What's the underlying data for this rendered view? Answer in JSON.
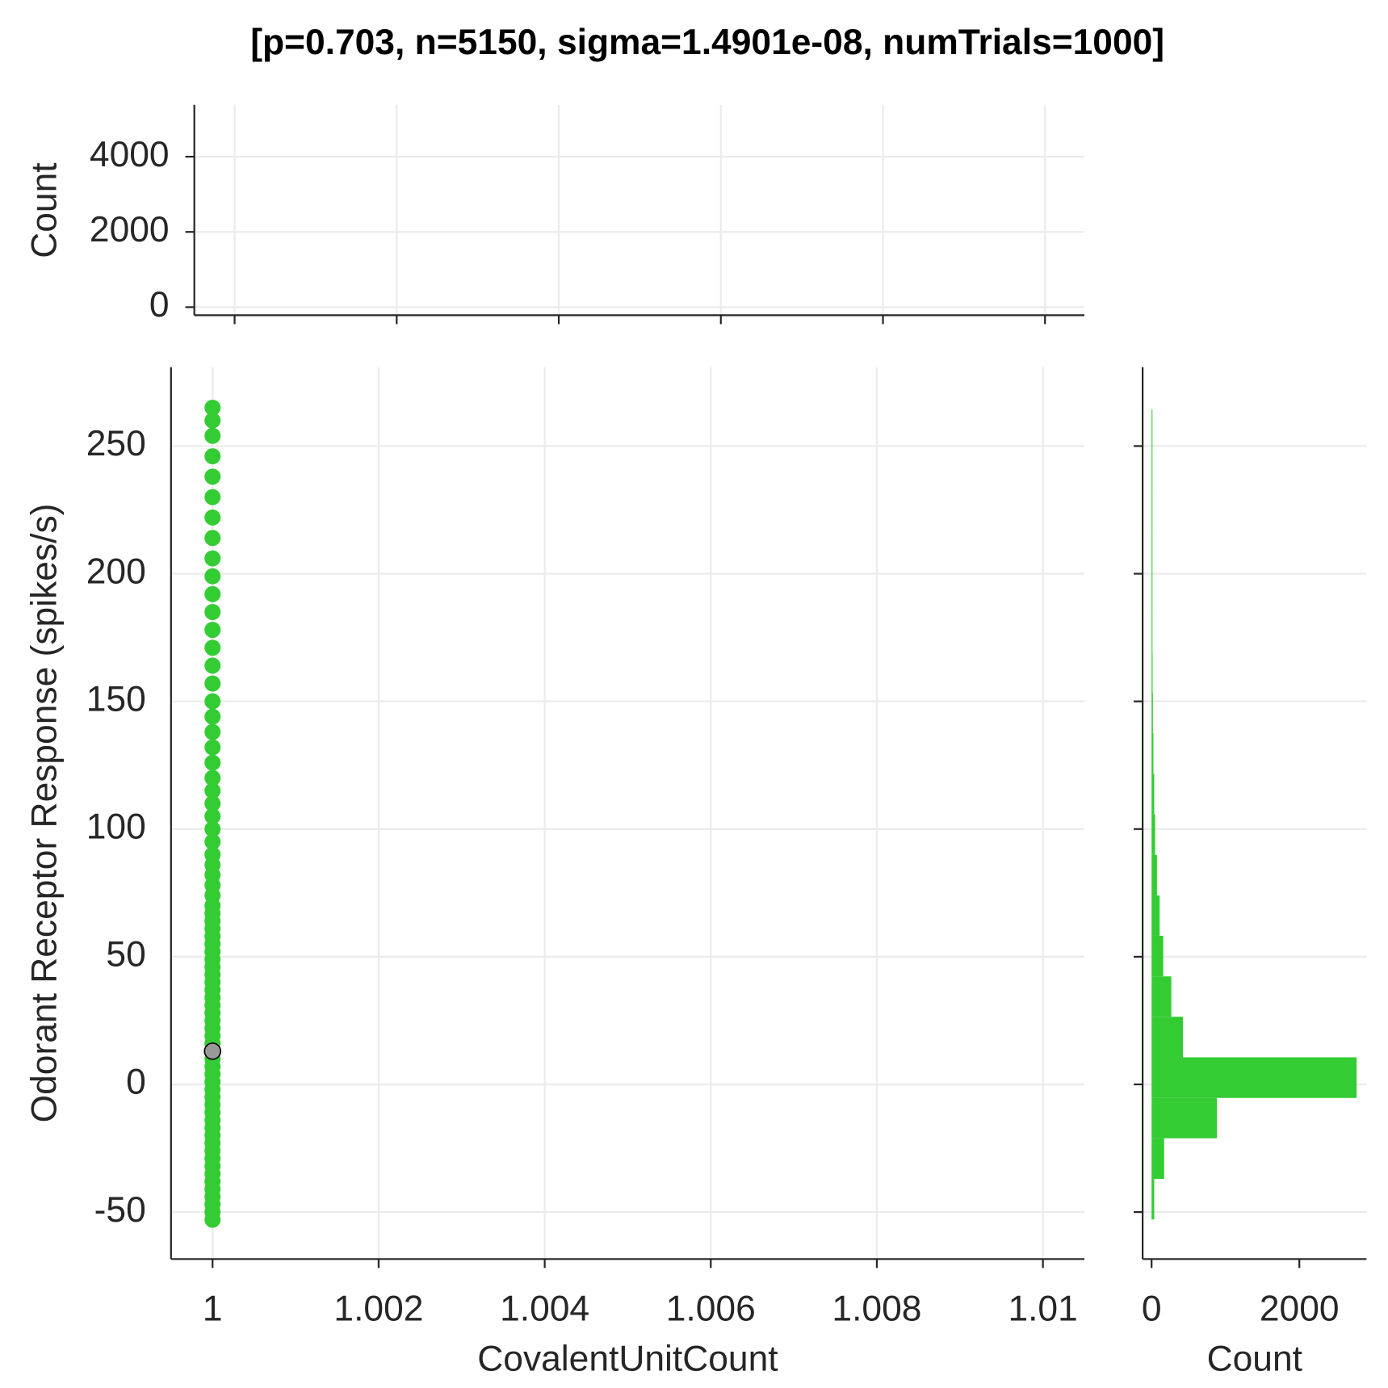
{
  "chart_data": [
    {
      "type": "histogram",
      "title": "[p=0.703, n=5150, sigma=1.4901e-08, numTrials=1000]",
      "y_label": "Count",
      "ylim": [
        -214,
        5380
      ],
      "yticks": [
        0,
        2000,
        4000
      ],
      "grid": true
    },
    {
      "type": "scatter",
      "x_label": "CovalentUnitCount",
      "y_label": "Odorant Receptor Response (spikes/s)",
      "xlim": [
        0.9995,
        1.0105
      ],
      "xticks": [
        1,
        1.002,
        1.004,
        1.006,
        1.008,
        1.01
      ],
      "ylim": [
        -68.4,
        280.9
      ],
      "yticks": [
        -50,
        0,
        50,
        100,
        150,
        200,
        250
      ],
      "grid": true,
      "series": [
        {
          "color": "#33cc33",
          "x": [
            1,
            1,
            1,
            1,
            1,
            1,
            1,
            1,
            1,
            1,
            1,
            1,
            1,
            1,
            1,
            1,
            1,
            1,
            1,
            1,
            1,
            1,
            1,
            1,
            1,
            1,
            1,
            1,
            1,
            1,
            1,
            1,
            1,
            1,
            1,
            1,
            1,
            1,
            1,
            1,
            1,
            1,
            1,
            1,
            1,
            1,
            1,
            1,
            1,
            1,
            1,
            1,
            1,
            1,
            1,
            1,
            1,
            1,
            1,
            1,
            1,
            1,
            1,
            1,
            1,
            1,
            1,
            1,
            1,
            1,
            1,
            1,
            1,
            1
          ],
          "values": [
            -53,
            -50,
            -47,
            -44,
            -41,
            -38,
            -35,
            -32,
            -29,
            -26,
            -23,
            -20,
            -17,
            -14,
            -11,
            -8,
            -5,
            -2,
            1,
            4,
            7,
            10,
            13,
            16,
            19,
            22,
            25,
            28,
            31,
            34,
            37,
            40,
            43,
            46,
            49,
            52,
            55,
            58,
            61,
            64,
            67,
            70,
            74,
            78,
            82,
            86,
            90,
            95,
            100,
            105,
            110,
            115,
            120,
            126,
            132,
            138,
            144,
            150,
            157,
            164,
            171,
            178,
            185,
            192,
            199,
            206,
            214,
            222,
            230,
            238,
            246,
            254,
            260,
            265
          ]
        },
        {
          "color": "#999999",
          "x": [
            1
          ],
          "values": [
            13
          ]
        }
      ]
    },
    {
      "type": "histogram-horizontal",
      "x_label": "Count",
      "xlim": [
        -121,
        2909
      ],
      "xticks": [
        0,
        2000
      ],
      "color": "#33cc33",
      "bins": [
        -52.9,
        -37,
        -21.1,
        -5.3,
        10.6,
        26.5,
        42.3,
        58.2,
        74,
        89.9,
        105.8,
        121.6,
        137.5,
        153.3,
        169.2,
        185.1,
        200.9,
        216.8,
        232.6,
        248.5,
        264.4
      ],
      "counts": [
        36,
        170,
        885,
        2775,
        424,
        267,
        158,
        109,
        73,
        48,
        36,
        25,
        18,
        14,
        10,
        8,
        5,
        4,
        3,
        2
      ]
    }
  ]
}
